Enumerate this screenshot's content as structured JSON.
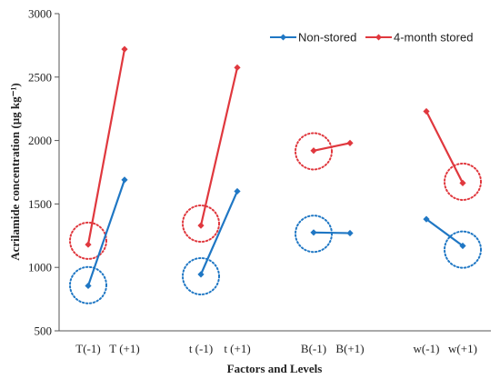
{
  "chart_data": {
    "type": "line",
    "xlabel": "Factors and Levels",
    "ylabel": "Acrilamide concentration (µg kg⁻¹)",
    "ylim": [
      500,
      3000
    ],
    "yticks": [
      "500",
      "1000",
      "1500",
      "2000",
      "2500",
      "3000"
    ],
    "ytick_values": [
      500,
      1000,
      1500,
      2000,
      2500,
      3000
    ],
    "grid": false,
    "legend_position": "top-right",
    "categories": [
      "T(-1)",
      "T (+1)",
      "t (-1)",
      "t (+1)",
      "B(-1)",
      "B(+1)",
      "w(-1)",
      "w(+1)"
    ],
    "category_groups": [
      [
        0,
        1
      ],
      [
        2,
        3
      ],
      [
        4,
        5
      ],
      [
        6,
        7
      ]
    ],
    "series": [
      {
        "name": "Non-stored",
        "color": "#1f77c4",
        "values": [
          855,
          1690,
          945,
          1600,
          1275,
          1270,
          1380,
          1170
        ]
      },
      {
        "name": "4-month stored",
        "color": "#e0383e",
        "values": [
          1180,
          2720,
          1330,
          2575,
          1920,
          1980,
          2230,
          1665
        ]
      }
    ],
    "annotations": [
      {
        "type": "dotted-circle",
        "category": "T(-1)",
        "value": 1210,
        "series": "4-month stored"
      },
      {
        "type": "dotted-circle",
        "category": "T(-1)",
        "value": 860,
        "series": "Non-stored"
      },
      {
        "type": "dotted-circle",
        "category": "t (-1)",
        "value": 1345,
        "series": "4-month stored"
      },
      {
        "type": "dotted-circle",
        "category": "t (-1)",
        "value": 930,
        "series": "Non-stored"
      },
      {
        "type": "dotted-circle",
        "category": "B(-1)",
        "value": 1915,
        "series": "4-month stored"
      },
      {
        "type": "dotted-circle",
        "category": "B(-1)",
        "value": 1265,
        "series": "Non-stored"
      },
      {
        "type": "dotted-circle",
        "category": "w(+1)",
        "value": 1675,
        "series": "4-month stored"
      },
      {
        "type": "dotted-circle",
        "category": "w(+1)",
        "value": 1140,
        "series": "Non-stored"
      }
    ]
  }
}
